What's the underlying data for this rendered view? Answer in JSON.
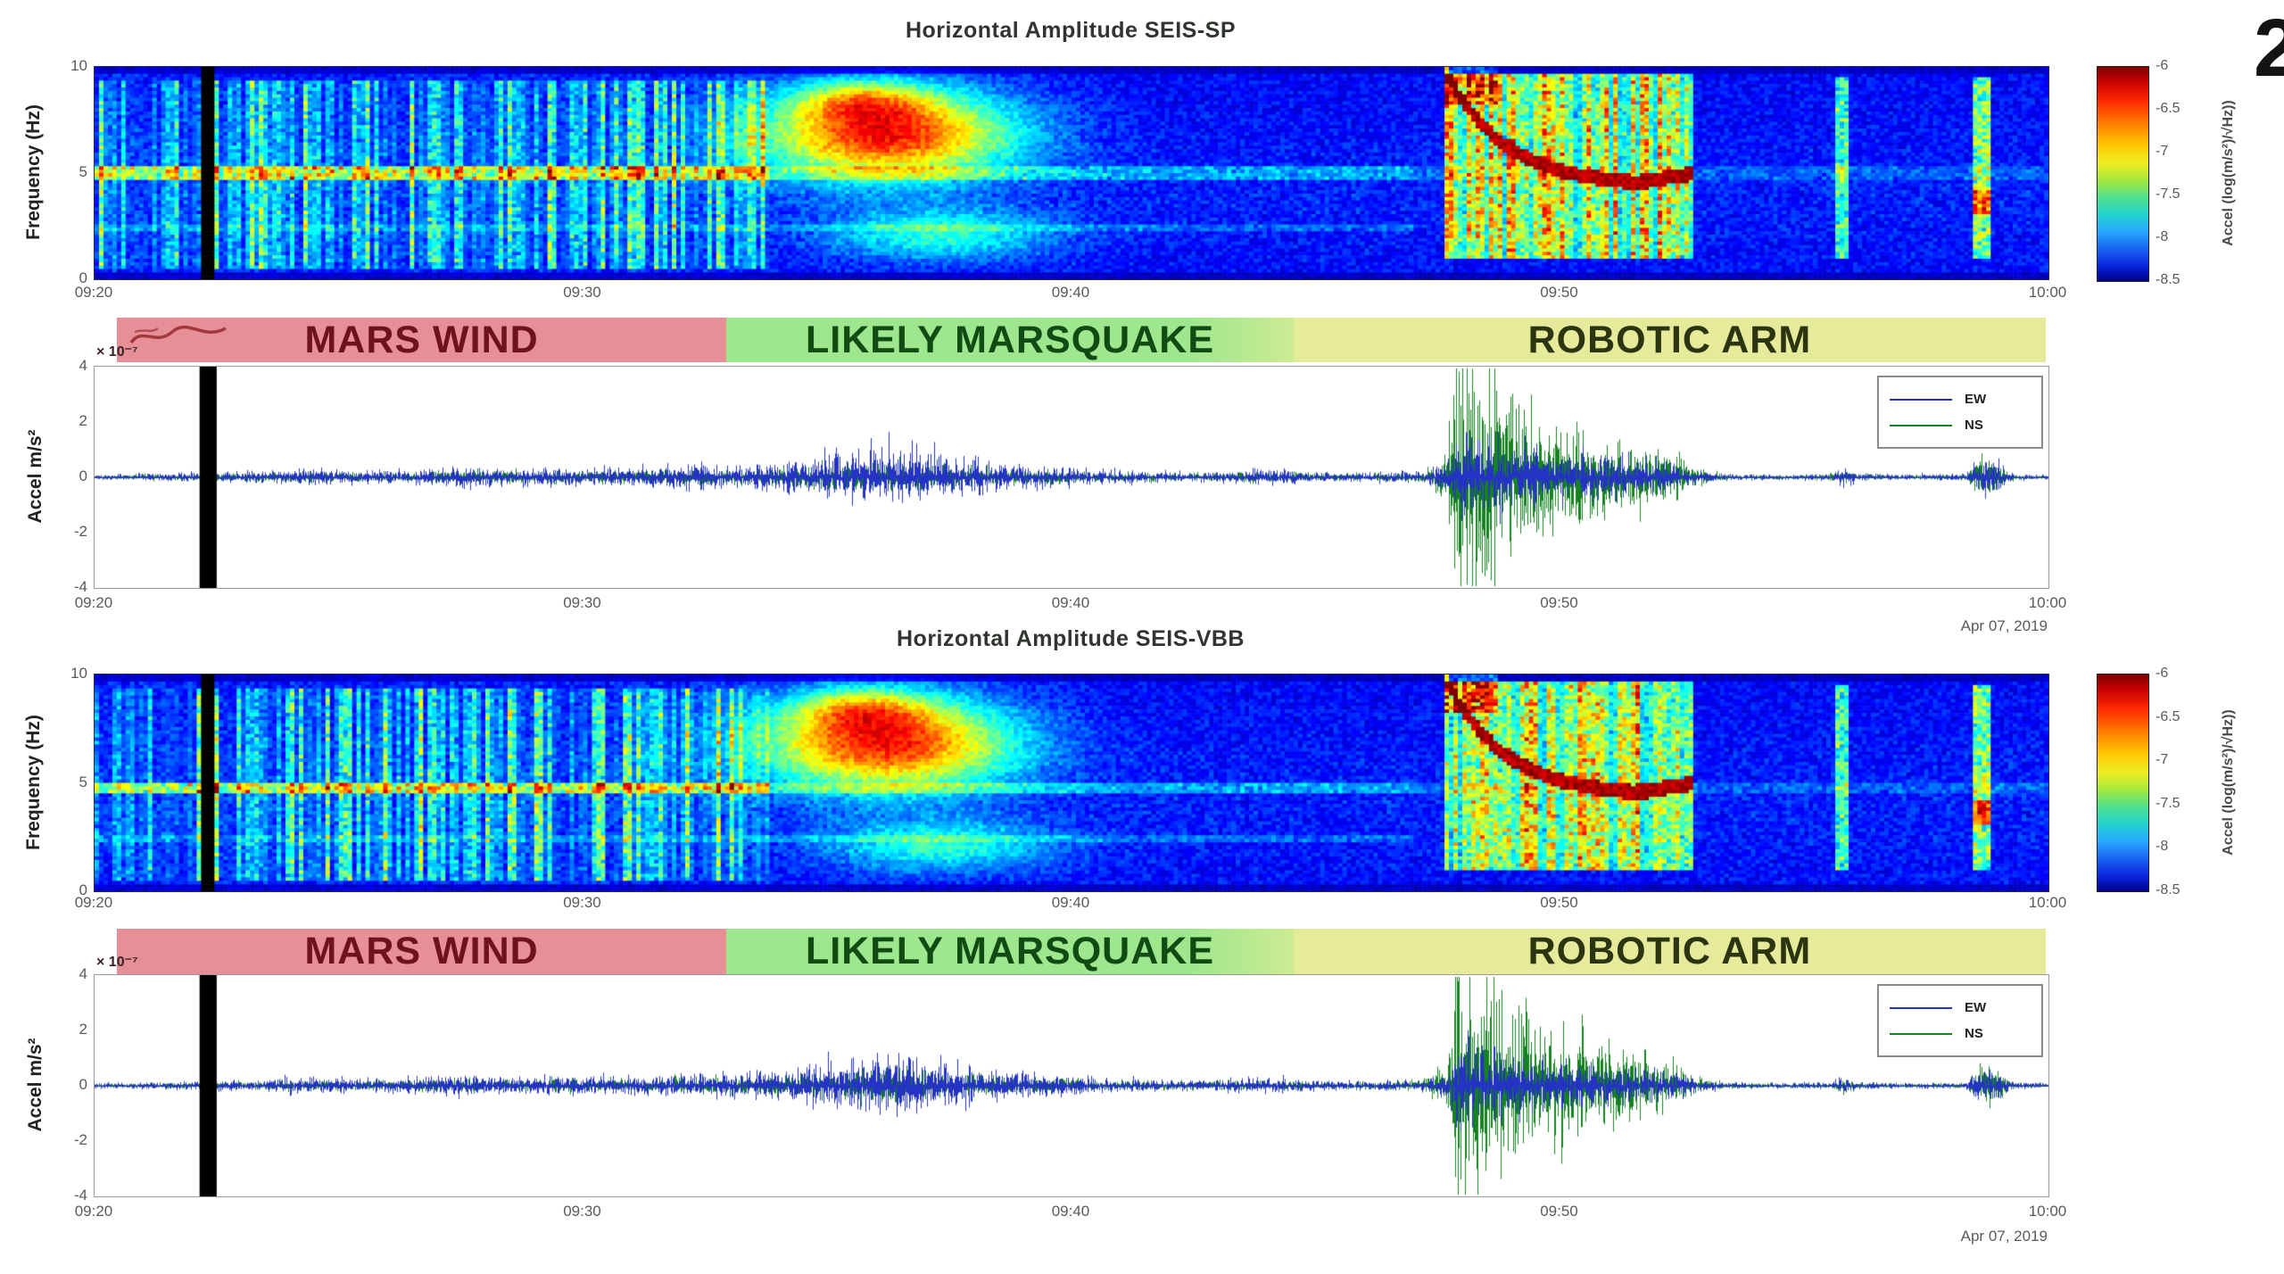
{
  "figure": {
    "corner_glyph": "2",
    "date_label": "Apr 07, 2019"
  },
  "colors": {
    "ew": "#2433c4",
    "ns": "#15821f",
    "band_pink": "#e78f96",
    "band_green": "#9fe78e",
    "band_yellow": "#e5eb9a",
    "label_wind": "#6e1220",
    "label_quake": "#0f4b12",
    "label_arm": "#2c3410",
    "title_text": "#30362f"
  },
  "panels": [
    {
      "title": "Horizontal Amplitude SEIS-SP",
      "spectrogram": {
        "ylabel": "Frequency (Hz)",
        "yticks": [
          "10",
          "5",
          "0"
        ],
        "xticks": [
          "09:20",
          "09:30",
          "09:40",
          "09:50",
          "10:00"
        ]
      },
      "colorbar": {
        "label": "Accel (log(m/s²)/√Hz))",
        "ticks": [
          "-6",
          "-6.5",
          "-7",
          "-7.5",
          "-8",
          "-8.5"
        ]
      },
      "band": [
        {
          "label": "MARS WIND",
          "bg": "#e78f96",
          "fg": "#6e1220",
          "f0": 0.0,
          "f1": 0.316
        },
        {
          "label": "LIKELY MARSQUAKE",
          "bg": "#9fe78e",
          "fg": "#0f4b12",
          "f0": 0.316,
          "f1": 0.61
        },
        {
          "label": "ROBOTIC ARM",
          "bg": "#e5eb9a",
          "fg": "#2c3410",
          "f0": 0.61,
          "f1": 1.0
        }
      ],
      "seismogram": {
        "ylabel": "Accel m/s²",
        "exponent": "× 10⁻⁷",
        "yticks": [
          "4",
          "2",
          "0",
          "-2",
          "-4"
        ],
        "xticks": [
          "09:20",
          "09:30",
          "09:40",
          "09:50",
          "10:00"
        ],
        "date": "Apr 07, 2019",
        "legend": [
          {
            "label": "EW",
            "color": "#2433c4"
          },
          {
            "label": "NS",
            "color": "#15821f"
          }
        ]
      }
    },
    {
      "title": "Horizontal Amplitude SEIS-VBB",
      "spectrogram": {
        "ylabel": "Frequency (Hz)",
        "yticks": [
          "10",
          "5",
          "0"
        ],
        "xticks": [
          "09:20",
          "09:30",
          "09:40",
          "09:50",
          "10:00"
        ]
      },
      "colorbar": {
        "label": "Accel (log(m/s²)/√Hz))",
        "ticks": [
          "-6",
          "-6.5",
          "-7",
          "-7.5",
          "-8",
          "-8.5"
        ]
      },
      "band": [
        {
          "label": "MARS WIND",
          "bg": "#e78f96",
          "fg": "#6e1220",
          "f0": 0.0,
          "f1": 0.316
        },
        {
          "label": "LIKELY MARSQUAKE",
          "bg": "#9fe78e",
          "fg": "#0f4b12",
          "f0": 0.316,
          "f1": 0.61
        },
        {
          "label": "ROBOTIC ARM",
          "bg": "#e5eb9a",
          "fg": "#2c3410",
          "f0": 0.61,
          "f1": 1.0
        }
      ],
      "seismogram": {
        "ylabel": "Accel m/s²",
        "exponent": "× 10⁻⁷",
        "yticks": [
          "4",
          "2",
          "0",
          "-2",
          "-4"
        ],
        "xticks": [
          "09:20",
          "09:30",
          "09:40",
          "09:50",
          "10:00"
        ],
        "date": "Apr 07, 2019",
        "legend": [
          {
            "label": "EW",
            "color": "#2433c4"
          },
          {
            "label": "NS",
            "color": "#15821f"
          }
        ]
      }
    }
  ],
  "chart_data": [
    {
      "id": "seis-sp-spectrogram",
      "type": "heatmap",
      "title": "Horizontal Amplitude SEIS-SP",
      "xlabel": "",
      "ylabel": "Frequency (Hz)",
      "xlim": [
        "09:20",
        "10:00"
      ],
      "x_ticks": [
        "09:20",
        "09:30",
        "09:40",
        "09:50",
        "10:00"
      ],
      "ylim": [
        0,
        10
      ],
      "y_ticks": [
        10,
        5,
        0
      ],
      "grid": false,
      "colorbar": {
        "label": "Accel (log(m/s²)/√Hz))",
        "ticks": [
          -6,
          -6.5,
          -7,
          -7.5,
          -8,
          -8.5
        ],
        "colormap": "jet",
        "position": "right"
      },
      "events": [
        {
          "name": "data-gap-black-stripe",
          "t_min": [
            2.15,
            2.5
          ]
        },
        {
          "name": "mars-wind-gust-striations",
          "t_min": [
            0,
            13.8
          ],
          "f_hz": [
            0.5,
            9.5
          ]
        },
        {
          "name": "lander-resonance-line",
          "f_hz": 5.0,
          "t_min": [
            0,
            27
          ]
        },
        {
          "name": "marsquake-energy-blob",
          "t_center_min": 16.2,
          "f_center_hz": 6.8,
          "t_sigma_min": 2.6,
          "f_sigma_hz": 2.1,
          "peak_level": -6.1
        },
        {
          "name": "robotic-arm-activity",
          "t_min": [
            27.6,
            32.7
          ],
          "f_hz": [
            1,
            9.6
          ],
          "feature": "descending red resonance arc 9.4 to 4.4 Hz"
        },
        {
          "name": "short-burst",
          "t_min": [
            35.65,
            35.95
          ]
        },
        {
          "name": "short-burst",
          "t_min": [
            38.45,
            38.85
          ],
          "hotspot_f_hz": 3.6
        }
      ],
      "render": {
        "seed": 7,
        "res_line_hz": 5.0,
        "res_line2_hz": 2.35
      }
    },
    {
      "id": "seis-sp-waveform",
      "type": "line",
      "ylabel": "Accel m/s²",
      "y_scale_label": "× 10⁻⁷",
      "ylim": [
        -4,
        4
      ],
      "x_ticks": [
        "09:20",
        "09:30",
        "09:40",
        "09:50",
        "10:00"
      ],
      "date_label": "Apr 07, 2019",
      "legend": [
        "EW",
        "NS"
      ],
      "legend_position": "top-right",
      "region_labels": [
        {
          "label": "MARS WIND",
          "t_min": [
            0.5,
            12.9
          ]
        },
        {
          "label": "LIKELY MARSQUAKE",
          "t_min": [
            12.9,
            24.5
          ]
        },
        {
          "label": "ROBOTIC ARM",
          "t_min": [
            24.5,
            39.9
          ]
        }
      ],
      "gap_t_min": [
        2.15,
        2.5
      ],
      "envelope": {
        "t_min": [
          0,
          1.5,
          2.2,
          2.5,
          3.5,
          4.5,
          5.5,
          6.5,
          7.5,
          8.5,
          9.5,
          10.5,
          11.5,
          12.5,
          13.2,
          14.0,
          14.8,
          15.4,
          16.0,
          16.5,
          17.2,
          18.0,
          19.0,
          20.0,
          21.0,
          22.0,
          23.0,
          24.0,
          24.6,
          25.3,
          26.2,
          27.2,
          27.7,
          27.95,
          28.2,
          28.6,
          29.2,
          30.0,
          30.8,
          31.6,
          32.4,
          32.8,
          33.5,
          34.5,
          35.5,
          35.8,
          36.1,
          37.0,
          38.3,
          38.6,
          38.9,
          39.3,
          40
        ],
        "ew": [
          0.06,
          0.1,
          0.12,
          0.12,
          0.18,
          0.22,
          0.16,
          0.2,
          0.28,
          0.22,
          0.26,
          0.22,
          0.28,
          0.3,
          0.32,
          0.4,
          0.55,
          0.75,
          0.9,
          0.8,
          0.6,
          0.45,
          0.32,
          0.24,
          0.18,
          0.14,
          0.14,
          0.22,
          0.16,
          0.12,
          0.12,
          0.16,
          0.35,
          1.3,
          1.1,
          0.9,
          0.75,
          0.65,
          0.55,
          0.45,
          0.35,
          0.15,
          0.08,
          0.07,
          0.08,
          0.28,
          0.1,
          0.07,
          0.08,
          0.45,
          0.4,
          0.08,
          0.06
        ],
        "ns": [
          0.05,
          0.08,
          0.1,
          0.1,
          0.12,
          0.15,
          0.12,
          0.14,
          0.18,
          0.15,
          0.17,
          0.15,
          0.18,
          0.2,
          0.2,
          0.25,
          0.3,
          0.38,
          0.42,
          0.38,
          0.3,
          0.25,
          0.2,
          0.16,
          0.13,
          0.11,
          0.11,
          0.15,
          0.12,
          0.1,
          0.1,
          0.14,
          0.6,
          4.2,
          3.4,
          2.6,
          2.0,
          1.55,
          1.15,
          0.85,
          0.55,
          0.2,
          0.07,
          0.06,
          0.07,
          0.18,
          0.08,
          0.06,
          0.07,
          0.55,
          0.5,
          0.07,
          0.05
        ]
      },
      "render": {
        "seed": 11
      }
    },
    {
      "id": "seis-vbb-spectrogram",
      "type": "heatmap",
      "title": "Horizontal Amplitude SEIS-VBB",
      "xlabel": "",
      "ylabel": "Frequency (Hz)",
      "xlim": [
        "09:20",
        "10:00"
      ],
      "x_ticks": [
        "09:20",
        "09:30",
        "09:40",
        "09:50",
        "10:00"
      ],
      "ylim": [
        0,
        10
      ],
      "y_ticks": [
        10,
        5,
        0
      ],
      "grid": false,
      "colorbar": {
        "label": "Accel (log(m/s²)/√Hz))",
        "ticks": [
          -6,
          -6.5,
          -7,
          -7.5,
          -8,
          -8.5
        ],
        "colormap": "jet",
        "position": "right"
      },
      "events": [
        {
          "name": "data-gap-black-stripe",
          "t_min": [
            2.15,
            2.5
          ]
        },
        {
          "name": "mars-wind-gust-striations",
          "t_min": [
            0,
            13.8
          ],
          "f_hz": [
            0.5,
            9.5
          ]
        },
        {
          "name": "lander-resonance-line",
          "f_hz": 4.7,
          "t_min": [
            0,
            27
          ]
        },
        {
          "name": "marsquake-energy-blob",
          "t_center_min": 16.2,
          "f_center_hz": 6.8,
          "t_sigma_min": 2.6,
          "f_sigma_hz": 2.1,
          "peak_level": -6.1
        },
        {
          "name": "robotic-arm-activity",
          "t_min": [
            27.6,
            32.7
          ],
          "f_hz": [
            1,
            9.6
          ],
          "feature": "descending red resonance arc 9.4 to 4.4 Hz"
        },
        {
          "name": "short-burst",
          "t_min": [
            35.65,
            35.95
          ]
        },
        {
          "name": "short-burst",
          "t_min": [
            38.45,
            38.85
          ],
          "hotspot_f_hz": 3.6
        }
      ],
      "render": {
        "seed": 13,
        "res_line_hz": 4.7,
        "res_line2_hz": 2.35
      }
    },
    {
      "id": "seis-vbb-waveform",
      "type": "line",
      "ylabel": "Accel m/s²",
      "y_scale_label": "× 10⁻⁷",
      "ylim": [
        -4,
        4
      ],
      "x_ticks": [
        "09:20",
        "09:30",
        "09:40",
        "09:50",
        "10:00"
      ],
      "date_label": "Apr 07, 2019",
      "legend": [
        "EW",
        "NS"
      ],
      "legend_position": "top-right",
      "region_labels": [
        {
          "label": "MARS WIND",
          "t_min": [
            0.5,
            12.9
          ]
        },
        {
          "label": "LIKELY MARSQUAKE",
          "t_min": [
            12.9,
            24.5
          ]
        },
        {
          "label": "ROBOTIC ARM",
          "t_min": [
            24.5,
            39.9
          ]
        }
      ],
      "gap_t_min": [
        2.15,
        2.5
      ],
      "envelope": {
        "t_min": [
          0,
          1.5,
          2.2,
          2.5,
          3.5,
          4.5,
          5.5,
          6.5,
          7.5,
          8.5,
          9.5,
          10.5,
          11.5,
          12.5,
          13.2,
          14.0,
          14.8,
          15.4,
          16.0,
          16.5,
          17.2,
          18.0,
          19.0,
          20.0,
          21.0,
          22.0,
          23.0,
          24.0,
          24.6,
          25.3,
          26.2,
          27.2,
          27.7,
          27.95,
          28.2,
          28.6,
          29.2,
          30.0,
          30.8,
          31.6,
          32.4,
          32.8,
          33.5,
          34.5,
          35.5,
          35.8,
          36.1,
          37.0,
          38.3,
          38.6,
          38.9,
          39.3,
          40
        ],
        "ew": [
          0.06,
          0.1,
          0.12,
          0.12,
          0.18,
          0.22,
          0.16,
          0.2,
          0.28,
          0.22,
          0.26,
          0.22,
          0.28,
          0.3,
          0.32,
          0.4,
          0.55,
          0.75,
          0.9,
          0.8,
          0.6,
          0.45,
          0.32,
          0.24,
          0.18,
          0.14,
          0.14,
          0.22,
          0.16,
          0.12,
          0.12,
          0.16,
          0.35,
          1.3,
          1.1,
          0.9,
          0.75,
          0.65,
          0.55,
          0.45,
          0.35,
          0.15,
          0.08,
          0.07,
          0.08,
          0.28,
          0.1,
          0.07,
          0.08,
          0.45,
          0.4,
          0.08,
          0.06
        ],
        "ns": [
          0.05,
          0.08,
          0.1,
          0.1,
          0.12,
          0.15,
          0.12,
          0.14,
          0.18,
          0.15,
          0.17,
          0.15,
          0.18,
          0.2,
          0.2,
          0.25,
          0.3,
          0.38,
          0.42,
          0.38,
          0.3,
          0.25,
          0.2,
          0.16,
          0.13,
          0.11,
          0.11,
          0.15,
          0.12,
          0.1,
          0.1,
          0.14,
          0.6,
          4.2,
          3.4,
          2.6,
          2.0,
          1.55,
          1.15,
          0.85,
          0.55,
          0.2,
          0.07,
          0.06,
          0.07,
          0.18,
          0.08,
          0.06,
          0.07,
          0.55,
          0.5,
          0.07,
          0.05
        ]
      },
      "render": {
        "seed": 17
      }
    }
  ]
}
